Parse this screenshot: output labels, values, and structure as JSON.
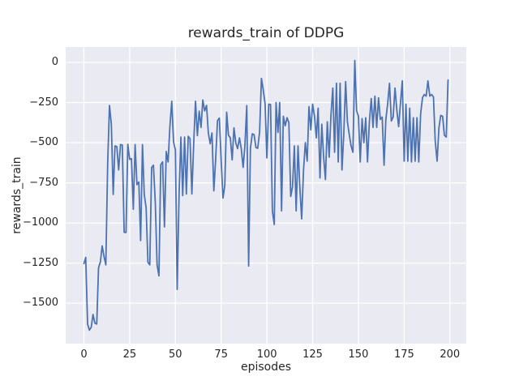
{
  "figure": {
    "background": "#ffffff",
    "axes_background": "#eaeaf2",
    "grid_color": "#ffffff",
    "text_color": "#262626"
  },
  "chart_data": {
    "type": "line",
    "title": "rewards_train of DDPG",
    "xlabel": "episodes",
    "ylabel": "rewards_train",
    "grid": true,
    "legend": false,
    "xlim": [
      -9.95,
      208.95
    ],
    "ylim": [
      -1752,
      96
    ],
    "xticks": [
      0,
      25,
      50,
      75,
      100,
      125,
      150,
      175,
      200
    ],
    "yticks": [
      0,
      -250,
      -500,
      -750,
      -1000,
      -1250,
      -1500
    ],
    "x_start": 0,
    "x_step": 1,
    "series": [
      {
        "name": "rewards_train",
        "color": "#4c72b0",
        "line_width": 1.8,
        "values": [
          -1253,
          -1215,
          -1630,
          -1668,
          -1650,
          -1570,
          -1625,
          -1630,
          -1280,
          -1243,
          -1143,
          -1210,
          -1261,
          -625,
          -268,
          -385,
          -823,
          -520,
          -525,
          -670,
          -512,
          -515,
          -1058,
          -1060,
          -510,
          -604,
          -600,
          -915,
          -512,
          -762,
          -745,
          -1110,
          -512,
          -823,
          -907,
          -1245,
          -1261,
          -655,
          -640,
          -873,
          -1261,
          -1330,
          -637,
          -620,
          -1025,
          -555,
          -620,
          -400,
          -242,
          -496,
          -546,
          -1414,
          -826,
          -465,
          -830,
          -465,
          -820,
          -460,
          -475,
          -820,
          -500,
          -242,
          -456,
          -304,
          -405,
          -234,
          -302,
          -268,
          -439,
          -507,
          -439,
          -800,
          -607,
          -363,
          -347,
          -607,
          -845,
          -767,
          -310,
          -453,
          -470,
          -607,
          -408,
          -503,
          -537,
          -470,
          -537,
          -654,
          -520,
          -269,
          -1269,
          -535,
          -445,
          -450,
          -530,
          -535,
          -435,
          -100,
          -170,
          -260,
          -595,
          -260,
          -262,
          -925,
          -1010,
          -250,
          -436,
          -250,
          -925,
          -335,
          -395,
          -345,
          -375,
          -835,
          -775,
          -520,
          -925,
          -520,
          -775,
          -975,
          -670,
          -500,
          -615,
          -275,
          -420,
          -260,
          -335,
          -470,
          -285,
          -720,
          -385,
          -590,
          -730,
          -370,
          -590,
          -330,
          -160,
          -560,
          -130,
          -620,
          -130,
          -670,
          -450,
          -120,
          -370,
          -450,
          -520,
          -560,
          12,
          -300,
          -335,
          -620,
          -350,
          -500,
          -345,
          -620,
          -370,
          -225,
          -405,
          -210,
          -405,
          -220,
          -355,
          -340,
          -640,
          -355,
          -255,
          -130,
          -365,
          -340,
          -160,
          -300,
          -400,
          -250,
          -115,
          -615,
          -260,
          -615,
          -285,
          -620,
          -345,
          -615,
          -345,
          -620,
          -320,
          -220,
          -200,
          -210,
          -115,
          -210,
          -200,
          -215,
          -490,
          -615,
          -405,
          -330,
          -335,
          -455,
          -465,
          -110
        ]
      }
    ]
  }
}
